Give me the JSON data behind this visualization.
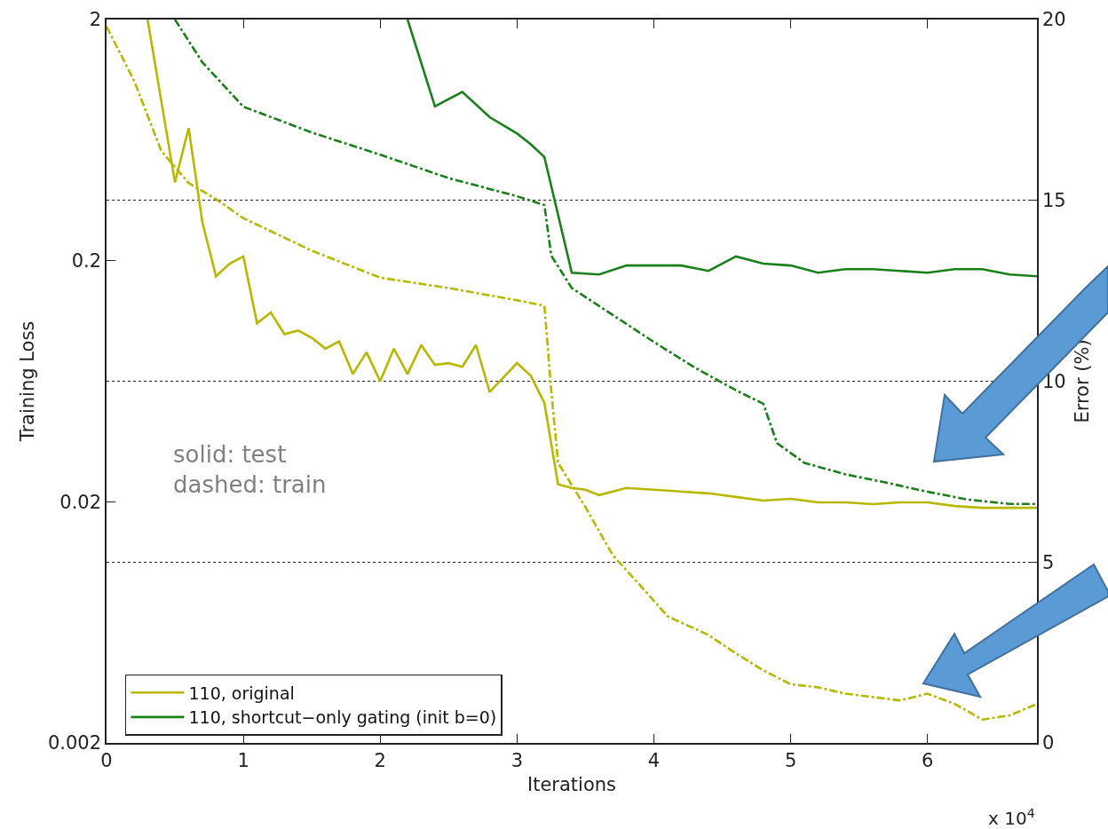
{
  "chart_data": {
    "type": "line",
    "xlabel": "Iterations",
    "ylabel": "Training Loss",
    "y2label": "Error (%)",
    "annotations": [
      "solid: test\ndashed: train",
      "x 10$^{4}$"
    ],
    "xlim": [
      0,
      6.8
    ],
    "xticks": [
      0,
      1,
      2,
      3,
      4,
      5,
      6
    ],
    "ylim": [
      0.002,
      2
    ],
    "yticks": [
      0.002,
      0.02,
      0.2,
      2
    ],
    "log": "y",
    "y2lim": [
      0,
      20
    ],
    "y2ticks": [
      0,
      5,
      10,
      15,
      20
    ],
    "grid": "y",
    "legend": "bottom left",
    "series": [
      {
        "name": "110, original",
        "color": "#b8b800",
        "axis": "y2",
        "line_style": "solid",
        "x": [
          0.3,
          0.5,
          0.6,
          0.7,
          0.8,
          0.9,
          1.0,
          1.1,
          1.2,
          1.3,
          1.4,
          1.5,
          1.6,
          1.7,
          1.8,
          1.9,
          2.0,
          2.1,
          2.2,
          2.3,
          2.4,
          2.5,
          2.6,
          2.7,
          2.8,
          2.9,
          3.0,
          3.1,
          3.2,
          3.3,
          3.4,
          3.5,
          3.6,
          3.8,
          4.0,
          4.4,
          4.6,
          4.8,
          5.0,
          5.2,
          5.4,
          5.6,
          5.8,
          6.0,
          6.2,
          6.4,
          6.6,
          6.8
        ],
        "values": [
          20,
          15.5,
          17.0,
          14.4,
          12.9,
          13.25,
          13.45,
          11.6,
          11.9,
          11.3,
          11.4,
          11.2,
          10.9,
          11.1,
          10.2,
          10.8,
          10.0,
          10.9,
          10.2,
          11.0,
          10.45,
          10.5,
          10.4,
          11.0,
          9.7,
          10.1,
          10.5,
          10.15,
          9.4,
          7.15,
          7.05,
          7.0,
          6.85,
          7.05,
          7.0,
          6.9,
          6.8,
          6.7,
          6.75,
          6.65,
          6.65,
          6.6,
          6.65,
          6.65,
          6.55,
          6.5,
          6.5,
          6.5
        ]
      },
      {
        "name": "110, shortcut−only gating (init b=0)",
        "color": "#1a801a",
        "axis": "y2",
        "line_style": "solid",
        "x": [
          2.2,
          2.4,
          2.5,
          2.6,
          2.8,
          3.0,
          3.1,
          3.2,
          3.4,
          3.6,
          3.8,
          4.0,
          4.2,
          4.4,
          4.6,
          4.8,
          5.0,
          5.2,
          5.4,
          5.6,
          5.8,
          6.0,
          6.2,
          6.4,
          6.6,
          6.8
        ],
        "values": [
          20,
          17.6,
          17.8,
          18.0,
          17.3,
          16.85,
          16.55,
          16.2,
          13.0,
          12.95,
          13.2,
          13.2,
          13.2,
          13.05,
          13.45,
          13.25,
          13.2,
          13.0,
          13.1,
          13.1,
          13.05,
          13.0,
          13.1,
          13.1,
          12.95,
          12.9
        ]
      },
      {
        "color": "#b8b800",
        "axis": "y",
        "line_style": "dashed",
        "x": [
          0,
          0.2,
          0.4,
          0.6,
          0.8,
          1.0,
          1.5,
          2.0,
          2.5,
          3.0,
          3.2,
          3.25,
          3.3,
          3.5,
          3.7,
          3.9,
          4.1,
          4.4,
          4.6,
          4.8,
          5.0,
          5.2,
          5.4,
          5.6,
          5.8,
          6.0,
          6.2,
          6.4,
          6.6,
          6.8
        ],
        "values": [
          1.87,
          1.12,
          0.57,
          0.42,
          0.36,
          0.3,
          0.22,
          0.17,
          0.154,
          0.137,
          0.13,
          0.058,
          0.029,
          0.019,
          0.012,
          0.009,
          0.0067,
          0.0056,
          0.0047,
          0.004,
          0.0035,
          0.0034,
          0.0032,
          0.0031,
          0.003,
          0.0032,
          0.0029,
          0.0025,
          0.0026,
          0.0029
        ]
      },
      {
        "color": "#1a801a",
        "axis": "y",
        "line_style": "dashed",
        "x": [
          0.5,
          0.7,
          1.0,
          1.5,
          2.0,
          2.5,
          3.0,
          3.2,
          3.25,
          3.4,
          3.7,
          4.0,
          4.3,
          4.6,
          4.8,
          4.9,
          5.1,
          5.4,
          5.7,
          6.0,
          6.3,
          6.6,
          6.8
        ],
        "values": [
          2.0,
          1.33,
          0.87,
          0.68,
          0.55,
          0.44,
          0.37,
          0.34,
          0.21,
          0.154,
          0.119,
          0.092,
          0.072,
          0.058,
          0.051,
          0.035,
          0.029,
          0.026,
          0.024,
          0.022,
          0.0204,
          0.0196,
          0.0196
        ]
      }
    ]
  }
}
